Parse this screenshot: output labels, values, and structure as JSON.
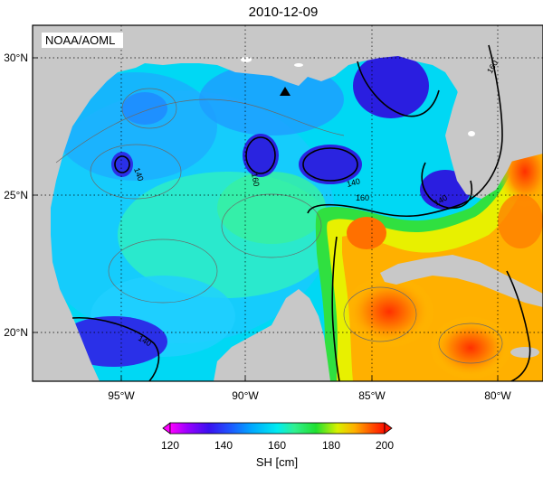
{
  "title": "2010-12-09",
  "credit": "NOAA/AOML",
  "latitude_labels": [
    "30°N",
    "25°N",
    "20°N"
  ],
  "longitude_labels": [
    "95°W",
    "90°W",
    "85°W",
    "80°W"
  ],
  "contour_labels": [
    "140",
    "140",
    "140",
    "140",
    "160",
    "160",
    "160"
  ],
  "colorbar": {
    "title": "SH [cm]",
    "tick_labels": [
      "120",
      "140",
      "160",
      "180",
      "200"
    ],
    "min": 120,
    "max": 200
  },
  "colors": {
    "land": "#c8c8c8",
    "deep_blue": "#2a1ee0",
    "cyan": "#00e6ff",
    "green": "#2de66a",
    "yellow": "#f0f000",
    "orange": "#ff8c00",
    "red": "#ff2000",
    "magenta": "#ff00ff"
  }
}
